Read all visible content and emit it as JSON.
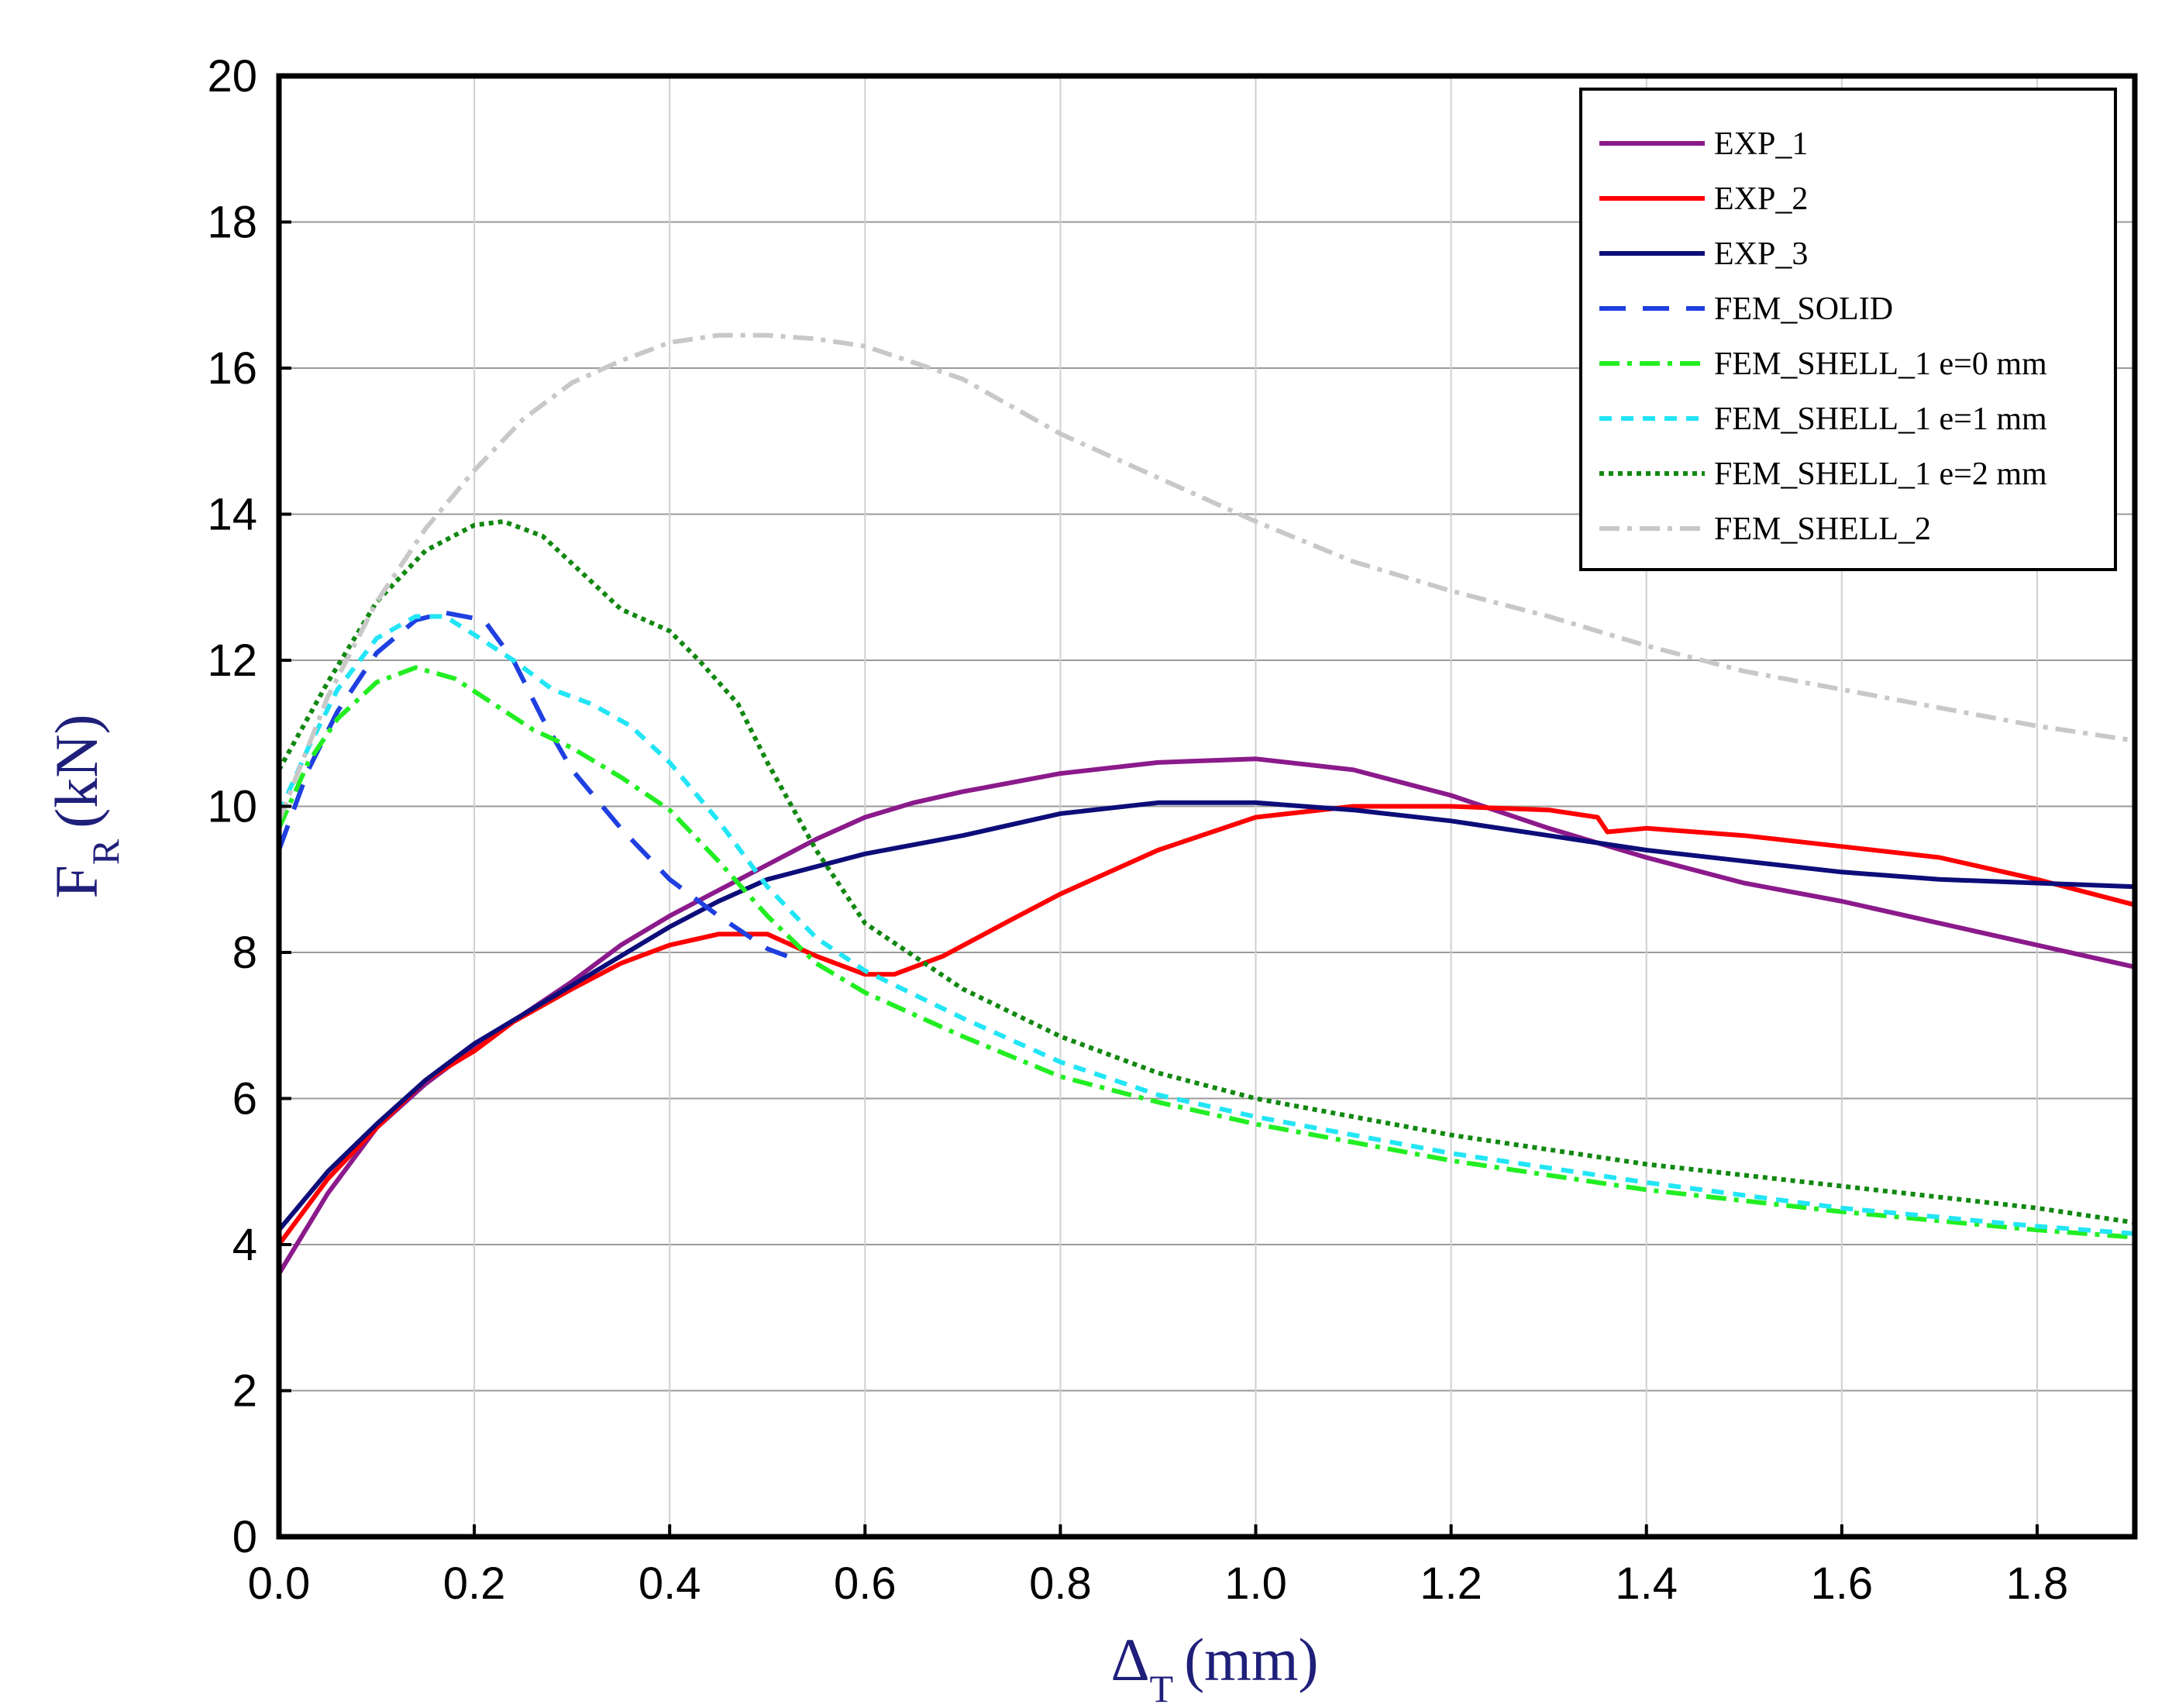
{
  "chart_data": {
    "type": "line",
    "title": "",
    "xlabel": {
      "main": "Δ",
      "sub": "T",
      "unit": "(mm)"
    },
    "ylabel": {
      "main": "F",
      "sub": "R",
      "unit": "(kN)"
    },
    "xlim": [
      0,
      1.9
    ],
    "ylim": [
      0,
      20
    ],
    "xticks": [
      0.0,
      0.2,
      0.4,
      0.6,
      0.8,
      1.0,
      1.2,
      1.4,
      1.6,
      1.8
    ],
    "xtick_labels": [
      "0.0",
      "0.2",
      "0.4",
      "0.6",
      "0.8",
      "1.0",
      "1.2",
      "1.4",
      "1.6",
      "1.8"
    ],
    "yticks": [
      0,
      2,
      4,
      6,
      8,
      10,
      12,
      14,
      16,
      18,
      20
    ],
    "ytick_labels": [
      "0",
      "2",
      "4",
      "6",
      "8",
      "10",
      "12",
      "14",
      "16",
      "18",
      "20"
    ],
    "grid": true,
    "legend_position": "top-right",
    "axis_title_color": "#1f1f7a",
    "series": [
      {
        "name": "EXP_1",
        "color": "#8b1a8b",
        "dash": "solid",
        "points": [
          [
            0.0,
            3.6
          ],
          [
            0.05,
            4.7
          ],
          [
            0.1,
            5.6
          ],
          [
            0.15,
            6.2
          ],
          [
            0.2,
            6.7
          ],
          [
            0.25,
            7.15
          ],
          [
            0.3,
            7.6
          ],
          [
            0.35,
            8.1
          ],
          [
            0.4,
            8.5
          ],
          [
            0.45,
            8.85
          ],
          [
            0.5,
            9.2
          ],
          [
            0.55,
            9.55
          ],
          [
            0.6,
            9.85
          ],
          [
            0.65,
            10.05
          ],
          [
            0.7,
            10.2
          ],
          [
            0.8,
            10.45
          ],
          [
            0.9,
            10.6
          ],
          [
            1.0,
            10.65
          ],
          [
            1.1,
            10.5
          ],
          [
            1.2,
            10.15
          ],
          [
            1.3,
            9.7
          ],
          [
            1.4,
            9.3
          ],
          [
            1.5,
            8.95
          ],
          [
            1.6,
            8.7
          ],
          [
            1.7,
            8.4
          ],
          [
            1.8,
            8.1
          ],
          [
            1.9,
            7.8
          ]
        ]
      },
      {
        "name": "EXP_2",
        "color": "#ff0000",
        "dash": "solid",
        "points": [
          [
            0.0,
            4.0
          ],
          [
            0.05,
            4.9
          ],
          [
            0.1,
            5.6
          ],
          [
            0.15,
            6.25
          ],
          [
            0.2,
            6.65
          ],
          [
            0.24,
            7.05
          ],
          [
            0.3,
            7.5
          ],
          [
            0.35,
            7.85
          ],
          [
            0.4,
            8.1
          ],
          [
            0.45,
            8.25
          ],
          [
            0.5,
            8.25
          ],
          [
            0.55,
            7.95
          ],
          [
            0.6,
            7.7
          ],
          [
            0.63,
            7.7
          ],
          [
            0.68,
            7.95
          ],
          [
            0.75,
            8.45
          ],
          [
            0.8,
            8.8
          ],
          [
            0.9,
            9.4
          ],
          [
            1.0,
            9.85
          ],
          [
            1.1,
            10.0
          ],
          [
            1.2,
            10.0
          ],
          [
            1.3,
            9.95
          ],
          [
            1.35,
            9.85
          ],
          [
            1.36,
            9.65
          ],
          [
            1.4,
            9.7
          ],
          [
            1.5,
            9.6
          ],
          [
            1.6,
            9.45
          ],
          [
            1.7,
            9.3
          ],
          [
            1.8,
            9.0
          ],
          [
            1.9,
            8.65
          ]
        ]
      },
      {
        "name": "EXP_3",
        "color": "#0d0d7a",
        "dash": "solid",
        "points": [
          [
            0.0,
            4.2
          ],
          [
            0.05,
            5.0
          ],
          [
            0.1,
            5.65
          ],
          [
            0.15,
            6.25
          ],
          [
            0.2,
            6.75
          ],
          [
            0.25,
            7.15
          ],
          [
            0.3,
            7.55
          ],
          [
            0.35,
            7.95
          ],
          [
            0.4,
            8.35
          ],
          [
            0.45,
            8.7
          ],
          [
            0.5,
            9.0
          ],
          [
            0.6,
            9.35
          ],
          [
            0.7,
            9.6
          ],
          [
            0.8,
            9.9
          ],
          [
            0.9,
            10.05
          ],
          [
            1.0,
            10.05
          ],
          [
            1.1,
            9.95
          ],
          [
            1.2,
            9.8
          ],
          [
            1.3,
            9.6
          ],
          [
            1.4,
            9.4
          ],
          [
            1.5,
            9.25
          ],
          [
            1.6,
            9.1
          ],
          [
            1.7,
            9.0
          ],
          [
            1.8,
            8.95
          ],
          [
            1.9,
            8.9
          ]
        ]
      },
      {
        "name": "FEM_SOLID",
        "color": "#1f3fe0",
        "dash": "long-dash",
        "points": [
          [
            0.0,
            9.4
          ],
          [
            0.03,
            10.5
          ],
          [
            0.06,
            11.3
          ],
          [
            0.1,
            12.1
          ],
          [
            0.14,
            12.55
          ],
          [
            0.17,
            12.65
          ],
          [
            0.21,
            12.55
          ],
          [
            0.24,
            12.0
          ],
          [
            0.27,
            11.2
          ],
          [
            0.3,
            10.5
          ],
          [
            0.35,
            9.7
          ],
          [
            0.4,
            9.0
          ],
          [
            0.45,
            8.5
          ],
          [
            0.5,
            8.05
          ],
          [
            0.52,
            7.95
          ]
        ]
      },
      {
        "name": "FEM_SHELL_1 e=0 mm",
        "color": "#22ee22",
        "dash": "dash-dot",
        "points": [
          [
            0.0,
            9.7
          ],
          [
            0.03,
            10.6
          ],
          [
            0.06,
            11.2
          ],
          [
            0.1,
            11.7
          ],
          [
            0.14,
            11.9
          ],
          [
            0.18,
            11.75
          ],
          [
            0.22,
            11.4
          ],
          [
            0.26,
            11.05
          ],
          [
            0.3,
            10.8
          ],
          [
            0.35,
            10.4
          ],
          [
            0.4,
            9.95
          ],
          [
            0.45,
            9.25
          ],
          [
            0.5,
            8.5
          ],
          [
            0.55,
            7.85
          ],
          [
            0.6,
            7.45
          ],
          [
            0.7,
            6.85
          ],
          [
            0.8,
            6.3
          ],
          [
            0.9,
            5.95
          ],
          [
            1.0,
            5.65
          ],
          [
            1.2,
            5.15
          ],
          [
            1.4,
            4.75
          ],
          [
            1.6,
            4.45
          ],
          [
            1.8,
            4.2
          ],
          [
            1.9,
            4.1
          ]
        ]
      },
      {
        "name": "FEM_SHELL_1 e=1 mm",
        "color": "#22e5f5",
        "dash": "short-dash",
        "points": [
          [
            0.0,
            9.9
          ],
          [
            0.03,
            10.8
          ],
          [
            0.06,
            11.6
          ],
          [
            0.1,
            12.3
          ],
          [
            0.14,
            12.6
          ],
          [
            0.17,
            12.6
          ],
          [
            0.2,
            12.35
          ],
          [
            0.24,
            12.0
          ],
          [
            0.28,
            11.6
          ],
          [
            0.32,
            11.4
          ],
          [
            0.36,
            11.1
          ],
          [
            0.4,
            10.6
          ],
          [
            0.45,
            9.8
          ],
          [
            0.5,
            8.9
          ],
          [
            0.55,
            8.2
          ],
          [
            0.6,
            7.75
          ],
          [
            0.7,
            7.1
          ],
          [
            0.8,
            6.5
          ],
          [
            0.9,
            6.05
          ],
          [
            1.0,
            5.75
          ],
          [
            1.2,
            5.25
          ],
          [
            1.4,
            4.85
          ],
          [
            1.6,
            4.5
          ],
          [
            1.8,
            4.25
          ],
          [
            1.9,
            4.15
          ]
        ]
      },
      {
        "name": "FEM_SHELL_1 e=2 mm",
        "color": "#118811",
        "dash": "dotted",
        "points": [
          [
            0.0,
            10.5
          ],
          [
            0.05,
            11.7
          ],
          [
            0.1,
            12.8
          ],
          [
            0.15,
            13.5
          ],
          [
            0.2,
            13.85
          ],
          [
            0.23,
            13.9
          ],
          [
            0.27,
            13.7
          ],
          [
            0.31,
            13.2
          ],
          [
            0.35,
            12.7
          ],
          [
            0.4,
            12.4
          ],
          [
            0.43,
            12.0
          ],
          [
            0.47,
            11.4
          ],
          [
            0.5,
            10.6
          ],
          [
            0.55,
            9.4
          ],
          [
            0.6,
            8.4
          ],
          [
            0.7,
            7.5
          ],
          [
            0.8,
            6.85
          ],
          [
            0.9,
            6.35
          ],
          [
            1.0,
            6.0
          ],
          [
            1.2,
            5.5
          ],
          [
            1.4,
            5.1
          ],
          [
            1.6,
            4.8
          ],
          [
            1.8,
            4.5
          ],
          [
            1.9,
            4.3
          ]
        ]
      },
      {
        "name": "FEM_SHELL_2",
        "color": "#c8c8c8",
        "dash": "dash-dot",
        "points": [
          [
            0.0,
            9.8
          ],
          [
            0.05,
            11.5
          ],
          [
            0.1,
            12.8
          ],
          [
            0.15,
            13.8
          ],
          [
            0.2,
            14.6
          ],
          [
            0.25,
            15.3
          ],
          [
            0.3,
            15.8
          ],
          [
            0.35,
            16.1
          ],
          [
            0.4,
            16.35
          ],
          [
            0.45,
            16.45
          ],
          [
            0.5,
            16.45
          ],
          [
            0.55,
            16.4
          ],
          [
            0.6,
            16.3
          ],
          [
            0.7,
            15.85
          ],
          [
            0.8,
            15.1
          ],
          [
            0.9,
            14.5
          ],
          [
            1.0,
            13.9
          ],
          [
            1.1,
            13.35
          ],
          [
            1.2,
            12.95
          ],
          [
            1.3,
            12.6
          ],
          [
            1.4,
            12.2
          ],
          [
            1.5,
            11.85
          ],
          [
            1.6,
            11.6
          ],
          [
            1.7,
            11.35
          ],
          [
            1.8,
            11.1
          ],
          [
            1.9,
            10.9
          ]
        ]
      }
    ]
  }
}
